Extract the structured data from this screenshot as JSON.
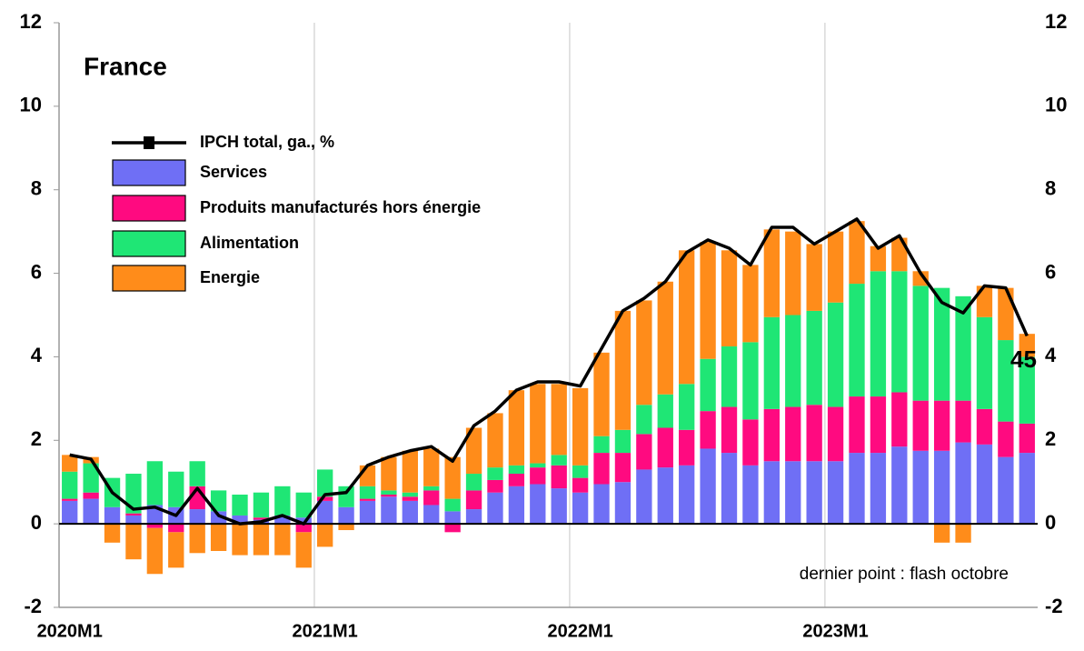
{
  "chart_data": {
    "type": "bar",
    "title": "France",
    "note": "dernier point : flash octobre",
    "annotation": "45",
    "stacked": true,
    "categories": [
      "2020M1",
      null,
      null,
      null,
      null,
      null,
      null,
      null,
      null,
      null,
      null,
      null,
      "2021M1",
      null,
      null,
      null,
      null,
      null,
      null,
      null,
      null,
      null,
      null,
      null,
      "2022M1",
      null,
      null,
      null,
      null,
      null,
      null,
      null,
      null,
      null,
      null,
      null,
      "2023M1",
      null,
      null,
      null,
      null,
      null,
      null,
      null,
      null,
      null
    ],
    "series": [
      {
        "name": "IPCH total, ga., %",
        "type": "line",
        "color": "#000000",
        "values": [
          1.65,
          1.55,
          0.75,
          0.35,
          0.4,
          0.2,
          0.85,
          0.2,
          0.0,
          0.05,
          0.2,
          0.0,
          0.7,
          0.75,
          1.4,
          1.6,
          1.75,
          1.85,
          1.5,
          2.35,
          2.7,
          3.2,
          3.4,
          3.4,
          3.3,
          4.2,
          5.1,
          5.4,
          5.8,
          6.5,
          6.8,
          6.6,
          6.2,
          7.1,
          7.1,
          6.7,
          7.0,
          7.3,
          6.6,
          6.9,
          6.0,
          5.3,
          5.05,
          5.7,
          5.65,
          4.5
        ]
      },
      {
        "name": "Services",
        "type": "bar",
        "color": "#6f6ff5",
        "values": [
          0.55,
          0.6,
          0.4,
          0.2,
          0.45,
          0.4,
          0.35,
          0.3,
          0.2,
          0.1,
          0.2,
          0.15,
          0.55,
          0.4,
          0.55,
          0.65,
          0.55,
          0.45,
          0.3,
          0.35,
          0.75,
          0.9,
          0.95,
          0.85,
          0.75,
          0.95,
          1.0,
          1.3,
          1.35,
          1.4,
          1.8,
          1.7,
          1.4,
          1.5,
          1.5,
          1.5,
          1.5,
          1.7,
          1.7,
          1.85,
          1.75,
          1.75,
          1.95,
          1.9,
          1.6,
          1.7
        ]
      },
      {
        "name": "Produits manufacturés hors énergie",
        "type": "bar",
        "color": "#ff0a80",
        "values": [
          0.05,
          0.15,
          0.0,
          0.05,
          -0.1,
          -0.2,
          0.55,
          0.0,
          0.0,
          0.05,
          0.0,
          -0.2,
          0.1,
          0.0,
          0.05,
          0.05,
          0.1,
          0.35,
          -0.2,
          0.45,
          0.3,
          0.3,
          0.4,
          0.55,
          0.35,
          0.75,
          0.7,
          0.85,
          0.95,
          0.85,
          0.9,
          1.1,
          1.1,
          1.25,
          1.3,
          1.35,
          1.3,
          1.35,
          1.35,
          1.3,
          1.2,
          1.2,
          1.0,
          0.85,
          0.85,
          0.7
        ]
      },
      {
        "name": "Alimentation",
        "type": "bar",
        "color": "#1fe675",
        "values": [
          0.65,
          0.7,
          0.7,
          0.95,
          1.05,
          0.85,
          0.6,
          0.5,
          0.5,
          0.6,
          0.7,
          0.6,
          0.65,
          0.5,
          0.3,
          0.1,
          0.1,
          0.1,
          0.3,
          0.4,
          0.3,
          0.2,
          0.1,
          0.25,
          0.3,
          0.4,
          0.55,
          0.7,
          0.8,
          1.1,
          1.25,
          1.45,
          1.85,
          2.2,
          2.2,
          2.25,
          2.5,
          2.7,
          3.0,
          2.9,
          2.75,
          2.7,
          2.5,
          2.2,
          1.95,
          1.6
        ]
      },
      {
        "name": "Energie",
        "type": "bar",
        "color": "#ff8c1a",
        "values": [
          0.4,
          0.15,
          -0.45,
          -0.85,
          -1.1,
          -0.85,
          -0.7,
          -0.65,
          -0.75,
          -0.75,
          -0.75,
          -0.85,
          -0.55,
          -0.15,
          0.5,
          0.8,
          1.0,
          0.9,
          1.0,
          1.1,
          1.3,
          1.8,
          1.9,
          1.7,
          1.85,
          2.0,
          2.85,
          2.5,
          2.7,
          3.2,
          2.8,
          2.3,
          1.85,
          2.1,
          2.0,
          1.6,
          1.7,
          1.5,
          0.6,
          0.8,
          0.35,
          -0.45,
          -0.45,
          0.75,
          1.25,
          0.55
        ]
      }
    ],
    "ylim": [
      -2,
      12
    ],
    "yticks": [
      -2,
      0,
      2,
      4,
      6,
      8,
      10,
      12
    ],
    "y2lim": [
      -2,
      12
    ],
    "y2ticks": [
      -2,
      0,
      2,
      4,
      6,
      8,
      10,
      12
    ],
    "grid": true
  }
}
